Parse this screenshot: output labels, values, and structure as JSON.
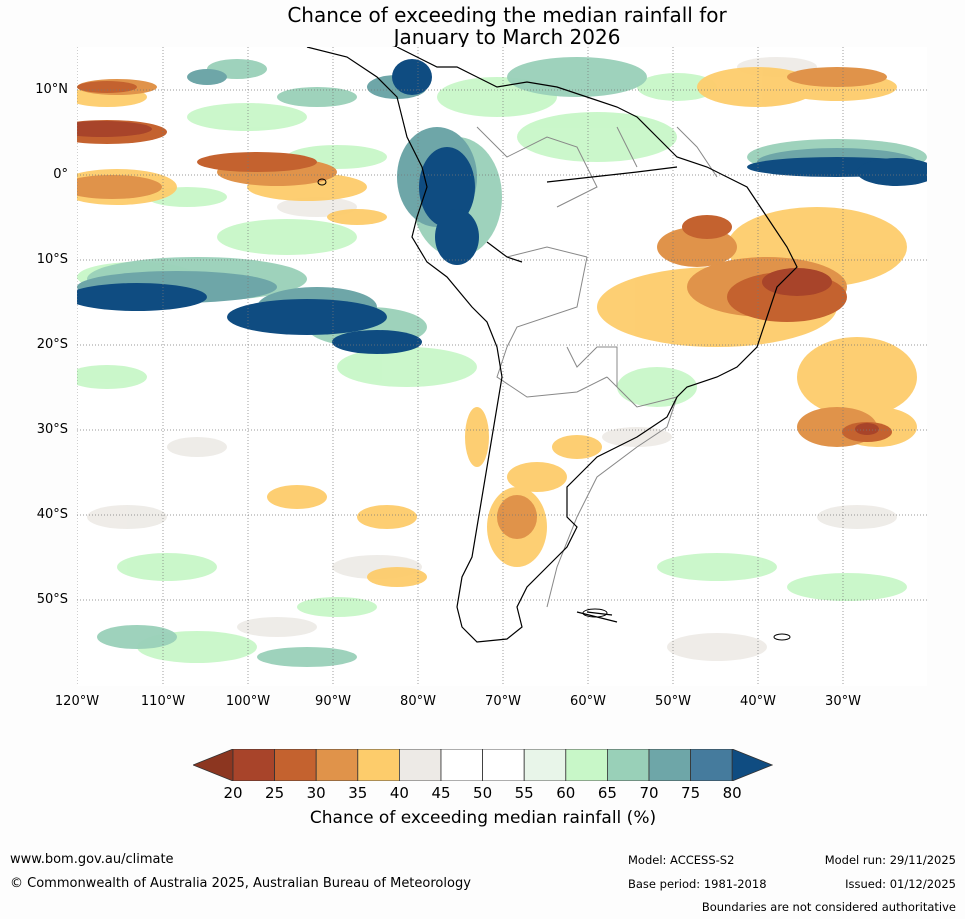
{
  "title_line1": "Chance of exceeding the median rainfall for",
  "title_line2": "January to March 2026",
  "map": {
    "lat_labels": [
      "10°N",
      "0°",
      "10°S",
      "20°S",
      "30°S",
      "40°S",
      "50°S"
    ],
    "lon_labels": [
      "120°W",
      "110°W",
      "100°W",
      "90°W",
      "80°W",
      "70°W",
      "60°W",
      "50°W",
      "40°W",
      "30°W"
    ]
  },
  "colorbar": {
    "ticks": [
      "20",
      "25",
      "30",
      "35",
      "40",
      "45",
      "50",
      "55",
      "60",
      "65",
      "70",
      "75",
      "80"
    ],
    "colors": [
      "#a8442a",
      "#c4622f",
      "#e0934a",
      "#fdcc6b",
      "#edeae6",
      "#ffffff",
      "#ffffff",
      "#e8f5e9",
      "#c8f7c8",
      "#99d0b8",
      "#6ea6a8",
      "#457b9d",
      "#0f4c81"
    ],
    "under_color": "#8c3620",
    "over_color": "#0f4c81",
    "label": "Chance of exceeding median rainfall (%)"
  },
  "footer": {
    "website": "www.bom.gov.au/climate",
    "copyright": "© Commonwealth of Australia 2025, Australian Bureau of Meteorology",
    "model": "Model: ACCESS-S2",
    "base_period": "Base period: 1981-2018",
    "model_run": "Model run: 29/11/2025",
    "issued": "Issued: 01/12/2025",
    "boundaries_note": "Boundaries are not considered authoritative"
  }
}
